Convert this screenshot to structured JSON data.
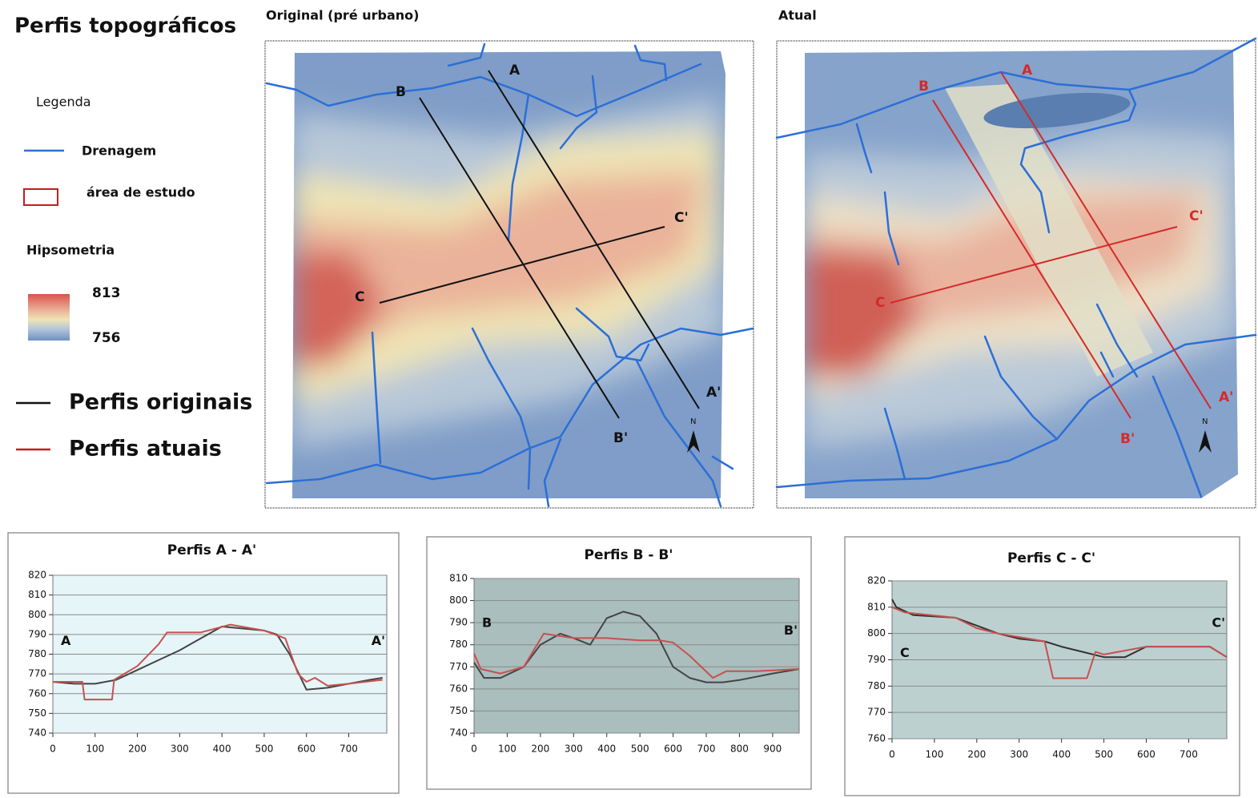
{
  "header": {
    "title": "Perfis topográficos"
  },
  "legend": {
    "title": "Legenda",
    "drainage": "Drenagem",
    "study_area": "área de estudo",
    "hypsometry": "Hipsometria",
    "hyp_max": "813",
    "hyp_min": "756",
    "original_profiles": "Perfis originais",
    "current_profiles": "Perfis atuais"
  },
  "maps": [
    {
      "title": "Original (pré urbano)",
      "labels": [
        "A",
        "A'",
        "B",
        "B'",
        "C",
        "C'"
      ],
      "north": "N"
    },
    {
      "title": "Atual",
      "labels": [
        "A",
        "A'",
        "B",
        "B'",
        "C",
        "C'"
      ],
      "north": "N"
    }
  ],
  "chart_data": [
    {
      "type": "line",
      "title": "Perfis A - A'",
      "annotations": [
        "A",
        "A'"
      ],
      "background": "#e6f5f7",
      "xlim": [
        0,
        790
      ],
      "xticks": [
        0,
        100,
        200,
        300,
        400,
        500,
        600,
        700
      ],
      "ylim": [
        740,
        820
      ],
      "yticks": [
        740,
        750,
        760,
        770,
        780,
        790,
        800,
        810,
        820
      ],
      "grid": true,
      "series": [
        {
          "color": "#444444",
          "x": [
            0,
            50,
            100,
            150,
            200,
            250,
            300,
            350,
            400,
            450,
            500,
            530,
            560,
            600,
            650,
            700,
            750,
            780
          ],
          "values": [
            766,
            765,
            765,
            767,
            772,
            777,
            782,
            788,
            794,
            793,
            792,
            790,
            780,
            762,
            763,
            765,
            767,
            768
          ]
        },
        {
          "color": "#c85050",
          "x": [
            0,
            70,
            75,
            140,
            145,
            200,
            250,
            270,
            350,
            420,
            500,
            550,
            580,
            600,
            620,
            650,
            700,
            780
          ],
          "values": [
            766,
            766,
            757,
            757,
            767,
            774,
            785,
            791,
            791,
            795,
            792,
            788,
            770,
            766,
            768,
            764,
            765,
            767
          ]
        }
      ]
    },
    {
      "type": "line",
      "title": "Perfis B - B'",
      "annotations": [
        "B",
        "B'"
      ],
      "background": "#a9bebd",
      "xlim": [
        0,
        980
      ],
      "xticks": [
        0,
        100,
        200,
        300,
        400,
        500,
        600,
        700,
        800,
        900
      ],
      "ylim": [
        740,
        810
      ],
      "yticks": [
        740,
        750,
        760,
        770,
        780,
        790,
        800,
        810
      ],
      "grid": true,
      "series": [
        {
          "color": "#444444",
          "x": [
            0,
            30,
            80,
            150,
            200,
            260,
            300,
            350,
            400,
            450,
            500,
            550,
            600,
            650,
            700,
            750,
            800,
            900,
            980
          ],
          "values": [
            772,
            765,
            765,
            770,
            780,
            785,
            783,
            780,
            792,
            795,
            793,
            785,
            770,
            765,
            763,
            763,
            764,
            767,
            769
          ]
        },
        {
          "color": "#c85050",
          "x": [
            0,
            20,
            80,
            150,
            210,
            300,
            400,
            500,
            560,
            600,
            650,
            720,
            760,
            850,
            980
          ],
          "values": [
            776,
            769,
            767,
            770,
            785,
            783,
            783,
            782,
            782,
            781,
            775,
            765,
            768,
            768,
            769
          ]
        }
      ]
    },
    {
      "type": "line",
      "title": "Perfis C - C'",
      "annotations": [
        "C",
        "C'"
      ],
      "background": "#bdd0d0",
      "xlim": [
        0,
        790
      ],
      "xticks": [
        0,
        100,
        200,
        300,
        400,
        500,
        600,
        700
      ],
      "ylim": [
        760,
        820
      ],
      "yticks": [
        760,
        770,
        780,
        790,
        800,
        810,
        820
      ],
      "grid": true,
      "series": [
        {
          "color": "#333333",
          "x": [
            0,
            10,
            50,
            150,
            200,
            250,
            300,
            360,
            400,
            450,
            500,
            550,
            600,
            650,
            750,
            790
          ],
          "values": [
            813,
            810,
            807,
            806,
            803,
            800,
            798,
            797,
            795,
            793,
            791,
            791,
            795,
            795,
            795,
            791
          ]
        },
        {
          "color": "#c85050",
          "x": [
            0,
            30,
            150,
            200,
            250,
            360,
            380,
            460,
            480,
            500,
            600,
            750,
            790
          ],
          "values": [
            810,
            808,
            806,
            802,
            800,
            797,
            783,
            783,
            793,
            792,
            795,
            795,
            791
          ]
        }
      ]
    }
  ]
}
